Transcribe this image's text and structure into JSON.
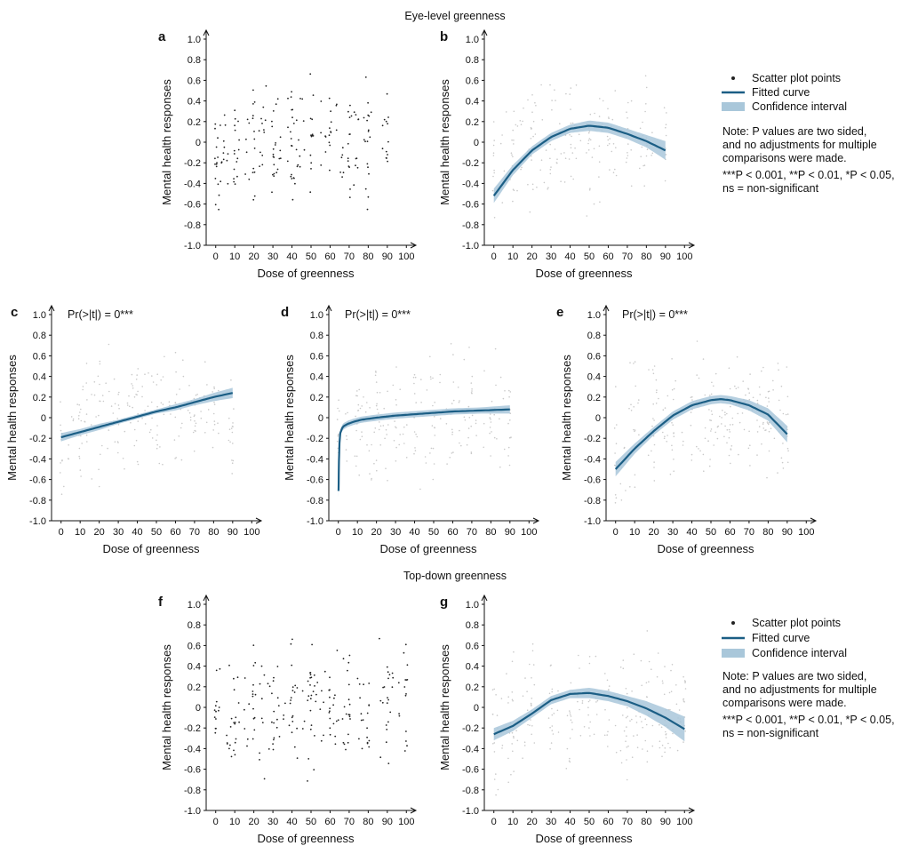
{
  "sections": {
    "eye_level": "Eye-level greenness",
    "top_down": "Top-down greenness"
  },
  "legend": {
    "points": "Scatter plot points",
    "curve": "Fitted curve",
    "ci": "Confidence interval",
    "note_lines": [
      "Note: P values are two sided,",
      "and no adjustments for multiple",
      "comparisons were made.",
      "***P < 0.001, **P < 0.01, *P < 0.05,",
      "ns = non-significant"
    ]
  },
  "colors": {
    "curve": "#1b5e85",
    "band": "#a9c7da",
    "points_dark": "#222222",
    "points_light": "#c9c9c9"
  },
  "chart_data": [
    {
      "panel": "a",
      "type": "scatter",
      "xlabel": "Dose of greenness",
      "ylabel": "Mental health responses",
      "xlim": [
        -5,
        105
      ],
      "ylim": [
        -1.0,
        1.0
      ],
      "xticks": [
        0,
        10,
        20,
        30,
        40,
        50,
        60,
        70,
        80,
        90,
        100
      ],
      "yticks": [
        -1.0,
        -0.8,
        -0.6,
        -0.4,
        -0.2,
        0,
        0.2,
        0.4,
        0.6,
        0.8,
        1.0
      ],
      "points_x_range": [
        0,
        90
      ],
      "point_style": "dark"
    },
    {
      "panel": "b",
      "type": "line",
      "xlabel": "Dose of greenness",
      "ylabel": "Mental health responses",
      "xlim": [
        -5,
        105
      ],
      "ylim": [
        -1.0,
        1.0
      ],
      "xticks": [
        0,
        10,
        20,
        30,
        40,
        50,
        60,
        70,
        80,
        90,
        100
      ],
      "yticks": [
        -1.0,
        -0.8,
        -0.6,
        -0.4,
        -0.2,
        0,
        0.2,
        0.4,
        0.6,
        0.8,
        1.0
      ],
      "points_x_range": [
        0,
        90
      ],
      "point_style": "light",
      "fit": {
        "x": [
          0,
          10,
          20,
          30,
          40,
          50,
          60,
          70,
          80,
          90
        ],
        "y": [
          -0.52,
          -0.27,
          -0.08,
          0.05,
          0.13,
          0.16,
          0.14,
          0.08,
          0.01,
          -0.08
        ],
        "band": [
          0.07,
          0.05,
          0.04,
          0.04,
          0.04,
          0.05,
          0.05,
          0.05,
          0.06,
          0.09
        ]
      }
    },
    {
      "panel": "c",
      "type": "line",
      "annotation": "Pr(>|t|) = 0***",
      "xlabel": "Dose of greenness",
      "ylabel": "Mental health responses",
      "xlim": [
        -5,
        105
      ],
      "ylim": [
        -1.0,
        1.0
      ],
      "xticks": [
        0,
        10,
        20,
        30,
        40,
        50,
        60,
        70,
        80,
        90,
        100
      ],
      "yticks": [
        -1.0,
        -0.8,
        -0.6,
        -0.4,
        -0.2,
        0,
        0.2,
        0.4,
        0.6,
        0.8,
        1.0
      ],
      "points_x_range": [
        0,
        90
      ],
      "point_style": "light",
      "fit": {
        "x": [
          0,
          10,
          20,
          30,
          40,
          50,
          60,
          70,
          80,
          90
        ],
        "y": [
          -0.19,
          -0.14,
          -0.09,
          -0.04,
          0.01,
          0.06,
          0.1,
          0.15,
          0.2,
          0.24
        ],
        "band": [
          0.04,
          0.03,
          0.03,
          0.02,
          0.02,
          0.02,
          0.03,
          0.03,
          0.04,
          0.05
        ]
      }
    },
    {
      "panel": "d",
      "type": "line",
      "annotation": "Pr(>|t|) = 0***",
      "xlabel": "Dose of greenness",
      "ylabel": "Mental health responses",
      "xlim": [
        -5,
        105
      ],
      "ylim": [
        -1.0,
        1.0
      ],
      "xticks": [
        0,
        10,
        20,
        30,
        40,
        50,
        60,
        70,
        80,
        90,
        100
      ],
      "yticks": [
        -1.0,
        -0.8,
        -0.6,
        -0.4,
        -0.2,
        0,
        0.2,
        0.4,
        0.6,
        0.8,
        1.0
      ],
      "points_x_range": [
        0,
        90
      ],
      "point_style": "light",
      "fit": {
        "x": [
          0.1,
          0.3,
          0.6,
          1,
          2,
          3,
          5,
          8,
          12,
          20,
          30,
          45,
          60,
          75,
          90
        ],
        "y": [
          -0.71,
          -0.44,
          -0.25,
          -0.15,
          -0.1,
          -0.08,
          -0.06,
          -0.04,
          -0.02,
          0.0,
          0.02,
          0.04,
          0.06,
          0.07,
          0.08
        ],
        "band": [
          0.06,
          0.05,
          0.04,
          0.03,
          0.03,
          0.03,
          0.03,
          0.03,
          0.03,
          0.03,
          0.03,
          0.03,
          0.03,
          0.03,
          0.04
        ]
      }
    },
    {
      "panel": "e",
      "type": "line",
      "annotation": "Pr(>|t|) = 0***",
      "xlabel": "Dose of greenness",
      "ylabel": "Mental health responses",
      "xlim": [
        -5,
        105
      ],
      "ylim": [
        -1.0,
        1.0
      ],
      "xticks": [
        0,
        10,
        20,
        30,
        40,
        50,
        60,
        70,
        80,
        90,
        100
      ],
      "yticks": [
        -1.0,
        -0.8,
        -0.6,
        -0.4,
        -0.2,
        0,
        0.2,
        0.4,
        0.6,
        0.8,
        1.0
      ],
      "points_x_range": [
        0,
        90
      ],
      "point_style": "light",
      "fit": {
        "x": [
          0,
          10,
          20,
          30,
          40,
          50,
          55,
          60,
          70,
          80,
          90
        ],
        "y": [
          -0.5,
          -0.3,
          -0.13,
          0.02,
          0.12,
          0.17,
          0.18,
          0.17,
          0.12,
          0.03,
          -0.16
        ],
        "band": [
          0.07,
          0.05,
          0.04,
          0.04,
          0.04,
          0.04,
          0.04,
          0.04,
          0.05,
          0.06,
          0.08
        ]
      }
    },
    {
      "panel": "f",
      "type": "scatter",
      "xlabel": "Dose of greenness",
      "ylabel": "Mental health responses",
      "xlim": [
        -5,
        105
      ],
      "ylim": [
        -1.0,
        1.0
      ],
      "xticks": [
        0,
        10,
        20,
        30,
        40,
        50,
        60,
        70,
        80,
        90,
        100
      ],
      "yticks": [
        -1.0,
        -0.8,
        -0.6,
        -0.4,
        -0.2,
        0,
        0.2,
        0.4,
        0.6,
        0.8,
        1.0
      ],
      "points_x_range": [
        0,
        100
      ],
      "point_style": "dark"
    },
    {
      "panel": "g",
      "type": "line",
      "xlabel": "Dose of greenness",
      "ylabel": "Mental health responses",
      "xlim": [
        -5,
        105
      ],
      "ylim": [
        -1.0,
        1.0
      ],
      "xticks": [
        0,
        10,
        20,
        30,
        40,
        50,
        60,
        70,
        80,
        90,
        100
      ],
      "yticks": [
        -1.0,
        -0.8,
        -0.6,
        -0.4,
        -0.2,
        0,
        0.2,
        0.4,
        0.6,
        0.8,
        1.0
      ],
      "points_x_range": [
        0,
        100
      ],
      "point_style": "light",
      "fit": {
        "x": [
          0,
          10,
          20,
          30,
          40,
          50,
          60,
          70,
          80,
          90,
          100
        ],
        "y": [
          -0.26,
          -0.18,
          -0.06,
          0.07,
          0.13,
          0.14,
          0.11,
          0.06,
          -0.01,
          -0.1,
          -0.21
        ],
        "band": [
          0.06,
          0.05,
          0.04,
          0.04,
          0.04,
          0.05,
          0.05,
          0.05,
          0.07,
          0.09,
          0.12
        ]
      }
    }
  ]
}
